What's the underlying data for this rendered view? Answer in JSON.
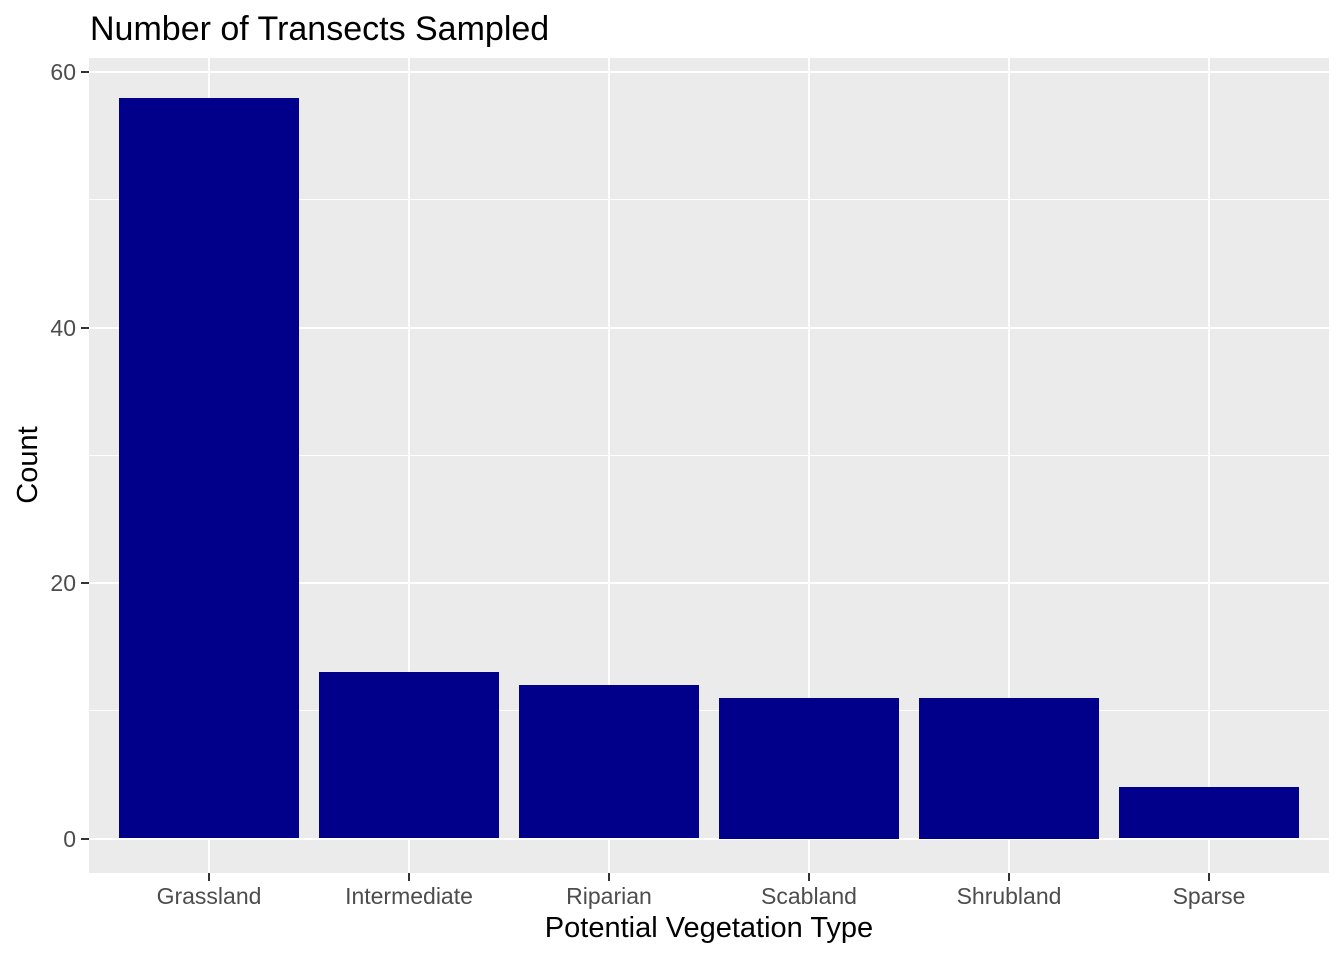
{
  "chart_data": {
    "type": "bar",
    "title": "Number of Transects Sampled",
    "xlabel": "Potential Vegetation Type",
    "ylabel": "Count",
    "categories": [
      "Grassland",
      "Intermediate",
      "Riparian",
      "Scabland",
      "Shrubland",
      "Sparse"
    ],
    "values": [
      58,
      13,
      12,
      11,
      11,
      4
    ],
    "y_major_ticks": [
      0,
      20,
      40,
      60
    ],
    "y_minor_gridlines": [
      10,
      30,
      50
    ],
    "ylim": [
      -2.7,
      61.1
    ],
    "grid": true,
    "legend": "none",
    "colors": {
      "bar_fill": "#00008B",
      "panel_background": "#EBEBEB",
      "gridline": "#FFFFFF",
      "tick_label": "#4D4D4D",
      "axis_title": "#000000",
      "tick_mark": "#333333"
    }
  }
}
